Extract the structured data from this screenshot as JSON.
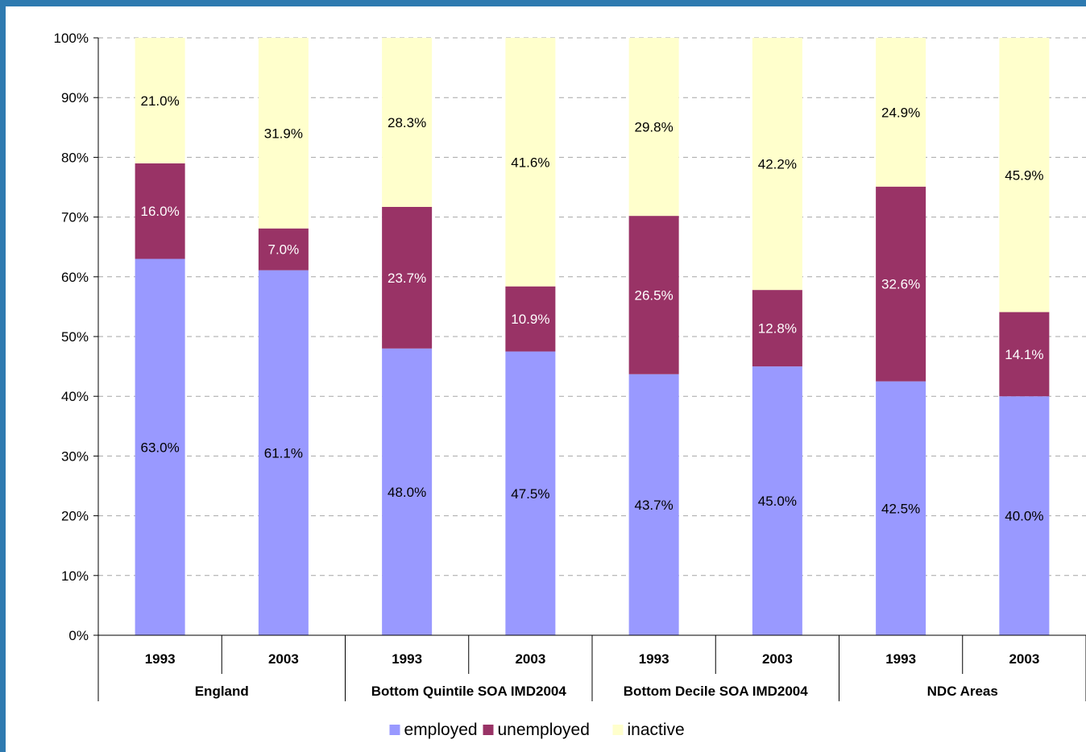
{
  "chart_data": {
    "type": "bar",
    "stacked": true,
    "percent_stacked": true,
    "groups": [
      {
        "label": "England",
        "bars": [
          {
            "year": "1993",
            "values": [
              63.0,
              16.0,
              21.0
            ],
            "labels": [
              "63.0%",
              "16.0%",
              "21.0%"
            ]
          },
          {
            "year": "2003",
            "values": [
              61.1,
              7.0,
              31.9
            ],
            "labels": [
              "61.1%",
              "7.0%",
              "31.9%"
            ]
          }
        ]
      },
      {
        "label": "Bottom Quintile SOA IMD2004",
        "bars": [
          {
            "year": "1993",
            "values": [
              48.0,
              23.7,
              28.3
            ],
            "labels": [
              "48.0%",
              "23.7%",
              "28.3%"
            ]
          },
          {
            "year": "2003",
            "values": [
              47.5,
              10.9,
              41.6
            ],
            "labels": [
              "47.5%",
              "10.9%",
              "41.6%"
            ]
          }
        ]
      },
      {
        "label": "Bottom Decile SOA IMD2004",
        "bars": [
          {
            "year": "1993",
            "values": [
              43.7,
              26.5,
              29.8
            ],
            "labels": [
              "43.7%",
              "26.5%",
              "29.8%"
            ]
          },
          {
            "year": "2003",
            "values": [
              45.0,
              12.8,
              42.2
            ],
            "labels": [
              "45.0%",
              "12.8%",
              "42.2%"
            ]
          }
        ]
      },
      {
        "label": "NDC Areas",
        "bars": [
          {
            "year": "1993",
            "values": [
              42.5,
              32.6,
              24.9
            ],
            "labels": [
              "42.5%",
              "32.6%",
              "24.9%"
            ]
          },
          {
            "year": "2003",
            "values": [
              40.0,
              14.1,
              45.9
            ],
            "labels": [
              "40.0%",
              "14.1%",
              "45.9%"
            ]
          }
        ]
      }
    ],
    "series": [
      {
        "name": "employed",
        "color": "#9999ff",
        "label_color": "#000000"
      },
      {
        "name": "unemployed",
        "color": "#993366",
        "label_color": "#ffffff"
      },
      {
        "name": "inactive",
        "color": "#ffffcc",
        "label_color": "#000000"
      }
    ],
    "yticks": [
      "0%",
      "10%",
      "20%",
      "30%",
      "40%",
      "50%",
      "60%",
      "70%",
      "80%",
      "90%",
      "100%"
    ],
    "ylim": [
      0,
      100
    ],
    "grid": true,
    "legend_position": "bottom",
    "frame_color": "#2e7ab0"
  }
}
